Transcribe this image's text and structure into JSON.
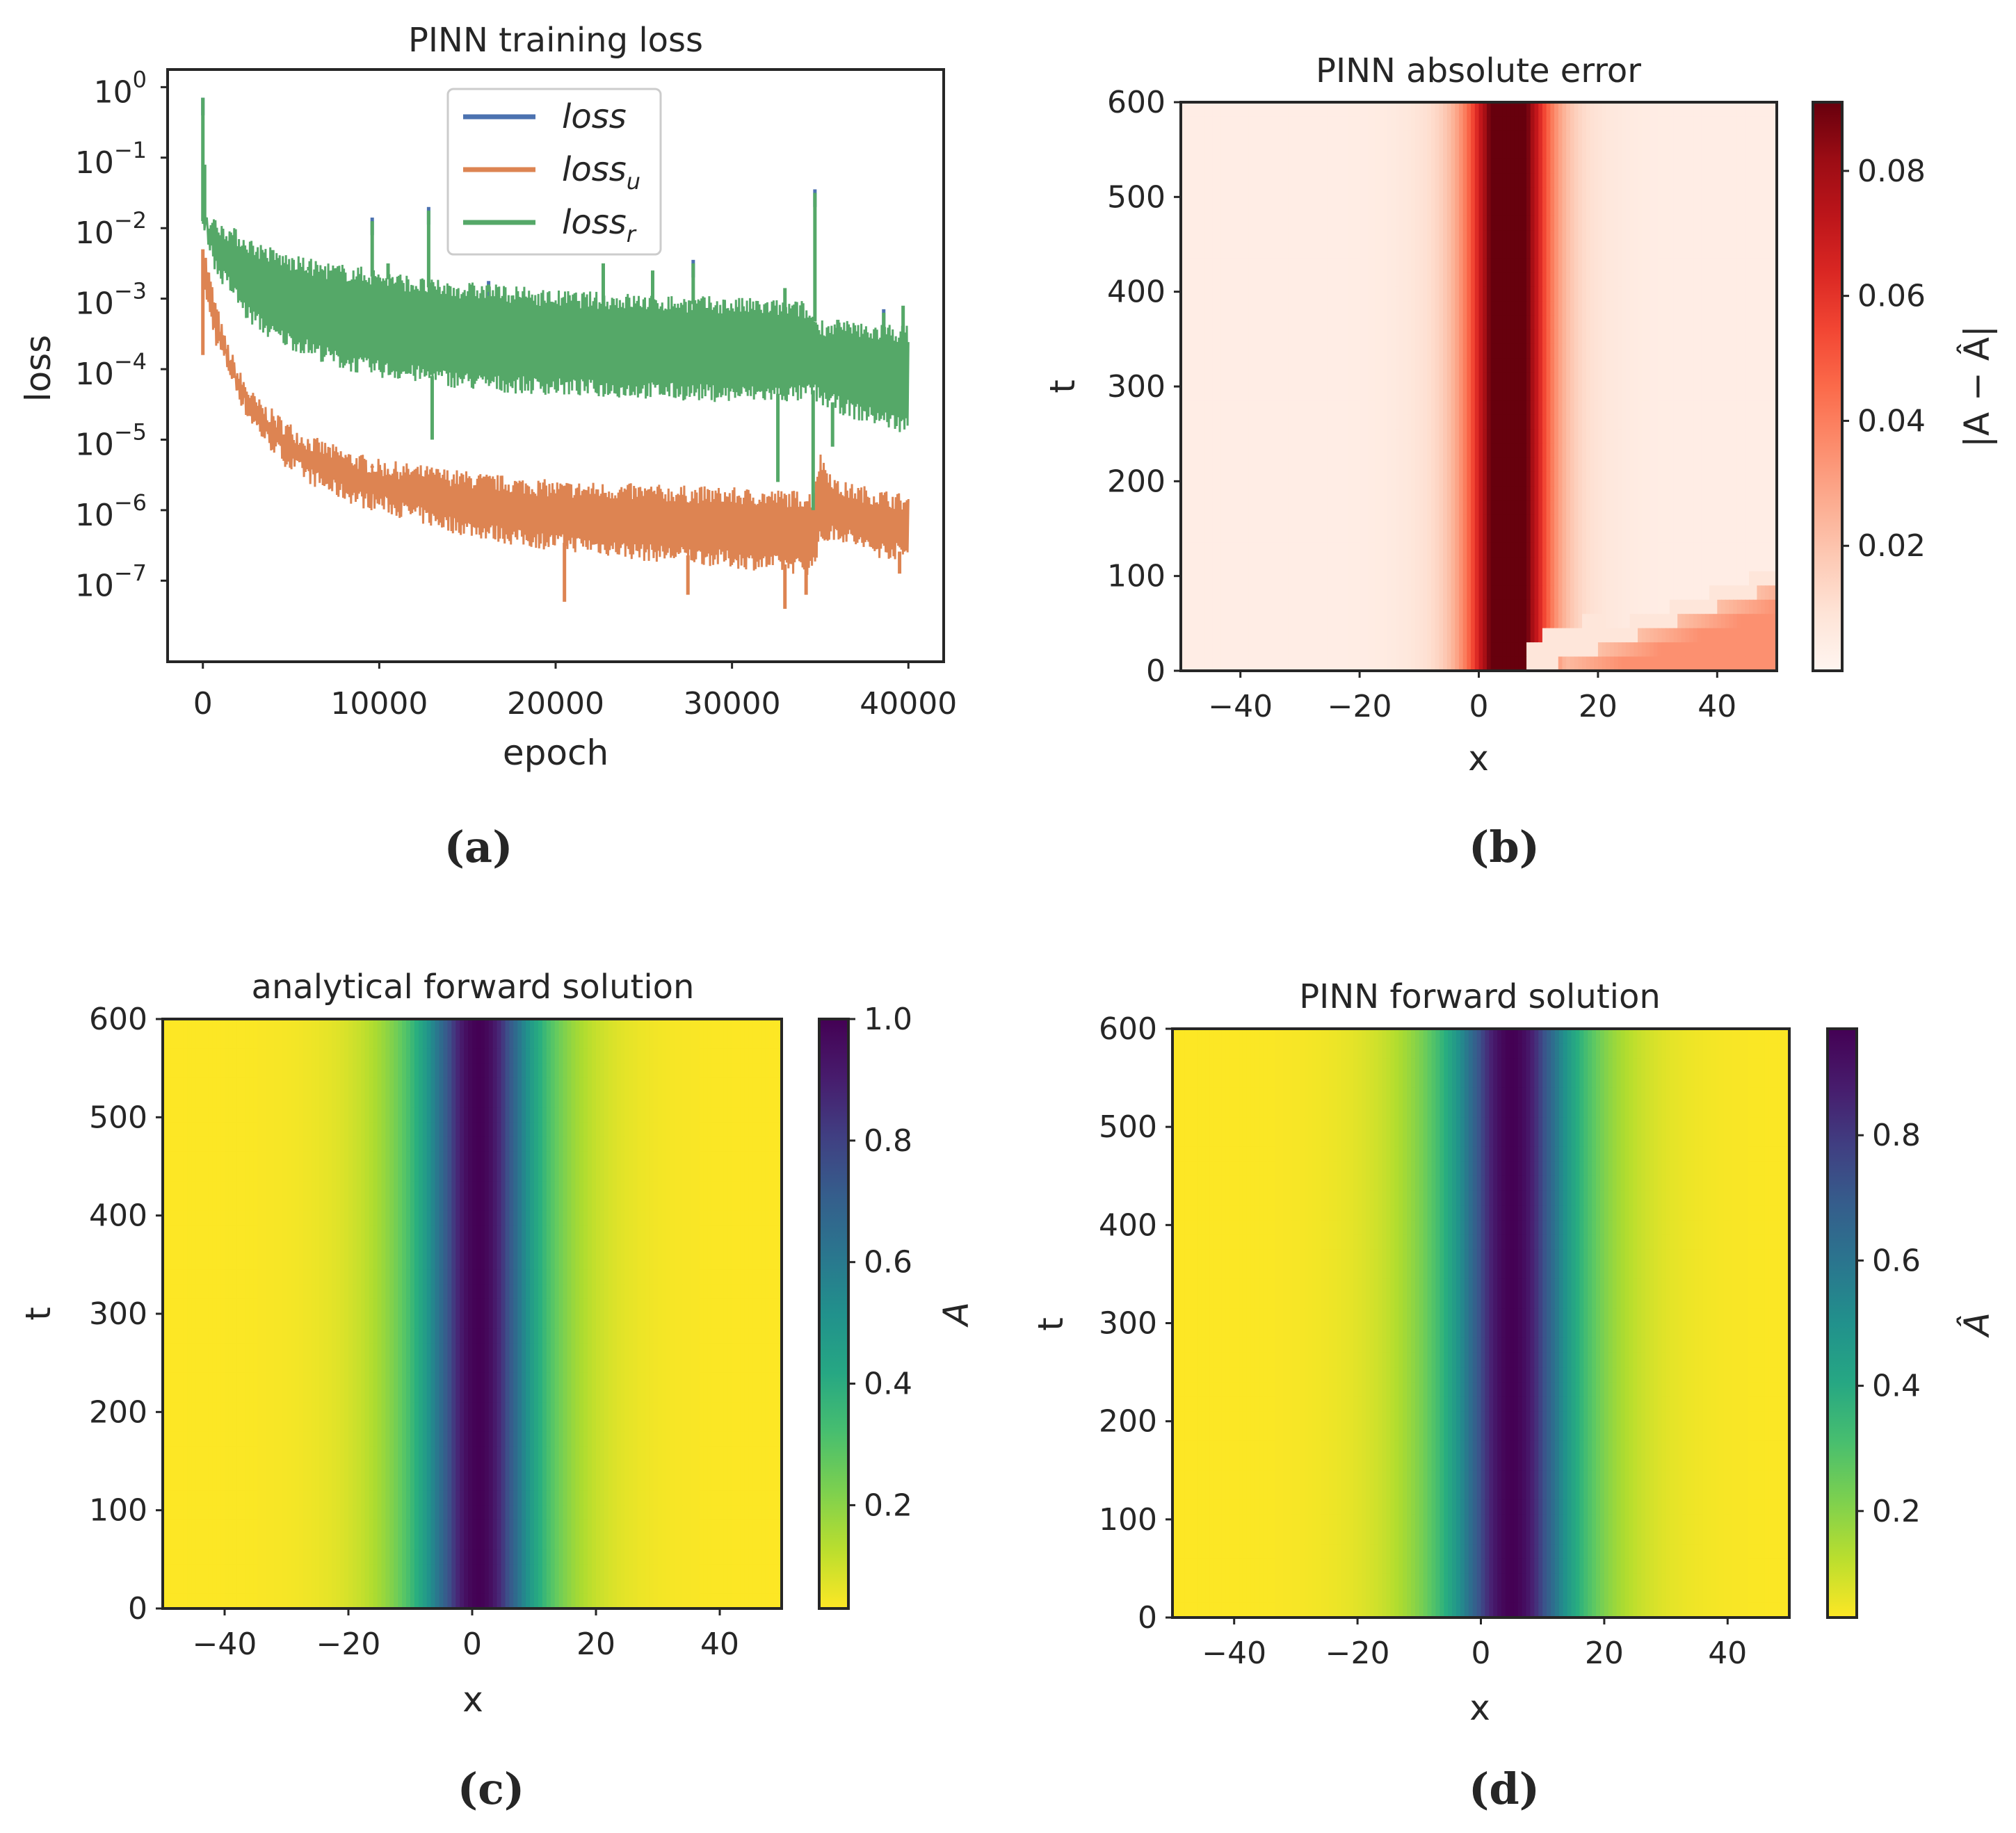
{
  "colors": {
    "loss": "#4c72b0",
    "loss_u": "#dd8452",
    "loss_r": "#55a868",
    "axes": "#262626"
  },
  "chart_data": [
    {
      "id": "a",
      "type": "line",
      "caption": "(a)",
      "title": "PINN training loss",
      "xlabel": "epoch",
      "ylabel": "loss",
      "yscale": "log",
      "xlim": [
        -2000,
        42000
      ],
      "ylim_exp": [
        -8.15,
        0.25
      ],
      "xticks": [
        0,
        10000,
        20000,
        30000,
        40000
      ],
      "xtick_labels": [
        "0",
        "10000",
        "20000",
        "30000",
        "40000"
      ],
      "yticks_exp": [
        0,
        -1,
        -2,
        -3,
        -4,
        -5,
        -6,
        -7
      ],
      "ytick_base": "10",
      "ytick_exps": [
        "0",
        "−1",
        "−2",
        "−3",
        "−4",
        "−5",
        "−6",
        "−7"
      ],
      "legend": {
        "placement": "upper-center",
        "entries": [
          "loss",
          "loss",
          "loss"
        ],
        "subscripts": [
          "",
          "u",
          "r"
        ]
      },
      "series": [
        {
          "name": "loss_r",
          "lower_log10": [
            [
              0,
              -1.6
            ],
            [
              300,
              -2.1
            ],
            [
              800,
              -2.6
            ],
            [
              1500,
              -2.8
            ],
            [
              2500,
              -3.2
            ],
            [
              4000,
              -3.5
            ],
            [
              6000,
              -3.7
            ],
            [
              8000,
              -3.9
            ],
            [
              10000,
              -4.0
            ],
            [
              13000,
              -4.1
            ],
            [
              16000,
              -4.2
            ],
            [
              20000,
              -4.25
            ],
            [
              25000,
              -4.3
            ],
            [
              30000,
              -4.35
            ],
            [
              34000,
              -4.35
            ],
            [
              34600,
              -4.3
            ],
            [
              35000,
              -4.4
            ],
            [
              37000,
              -4.6
            ],
            [
              40000,
              -4.8
            ]
          ],
          "upper_log10": [
            [
              0,
              -1.9
            ],
            [
              1000,
              -2.0
            ],
            [
              3000,
              -2.3
            ],
            [
              5000,
              -2.5
            ],
            [
              7000,
              -2.6
            ],
            [
              10000,
              -2.7
            ],
            [
              13000,
              -2.85
            ],
            [
              16000,
              -2.9
            ],
            [
              20000,
              -3.0
            ],
            [
              25000,
              -3.05
            ],
            [
              30000,
              -3.1
            ],
            [
              34000,
              -3.15
            ],
            [
              35000,
              -3.4
            ],
            [
              37000,
              -3.45
            ],
            [
              40000,
              -3.5
            ]
          ],
          "spikes": [
            [
              0,
              -0.15
            ],
            [
              100,
              -1.1
            ],
            [
              9600,
              -1.9
            ],
            [
              12800,
              -1.75
            ],
            [
              10500,
              -2.5
            ],
            [
              6000,
              -2.6
            ],
            [
              16200,
              -2.8
            ],
            [
              22700,
              -2.5
            ],
            [
              25500,
              -2.6
            ],
            [
              27800,
              -2.5
            ],
            [
              33000,
              -2.85
            ],
            [
              34700,
              -1.5
            ],
            [
              36000,
              -3.3
            ],
            [
              38600,
              -3.2
            ],
            [
              39700,
              -3.1
            ]
          ],
          "dips": [
            [
              13000,
              -5.0
            ],
            [
              32600,
              -5.6
            ],
            [
              34600,
              -6.0
            ],
            [
              35700,
              -5.1
            ]
          ]
        },
        {
          "name": "loss_u",
          "lower_log10": [
            [
              0,
              -2.4
            ],
            [
              200,
              -3.0
            ],
            [
              800,
              -3.6
            ],
            [
              1500,
              -4.0
            ],
            [
              2500,
              -4.6
            ],
            [
              3500,
              -4.95
            ],
            [
              5000,
              -5.35
            ],
            [
              7000,
              -5.65
            ],
            [
              9000,
              -5.85
            ],
            [
              10000,
              -5.9
            ],
            [
              12000,
              -6.05
            ],
            [
              14000,
              -6.2
            ],
            [
              16000,
              -6.3
            ],
            [
              18000,
              -6.4
            ],
            [
              20000,
              -6.45
            ],
            [
              22000,
              -6.5
            ],
            [
              25000,
              -6.6
            ],
            [
              28000,
              -6.65
            ],
            [
              30000,
              -6.7
            ],
            [
              32000,
              -6.75
            ],
            [
              34500,
              -6.8
            ],
            [
              35000,
              -6.4
            ],
            [
              36000,
              -6.3
            ],
            [
              38000,
              -6.55
            ],
            [
              40000,
              -6.6
            ]
          ],
          "upper_log10": [
            [
              0,
              -2.3
            ],
            [
              200,
              -2.5
            ],
            [
              600,
              -3.0
            ],
            [
              1200,
              -3.6
            ],
            [
              2000,
              -4.1
            ],
            [
              3000,
              -4.5
            ],
            [
              4500,
              -4.8
            ],
            [
              6000,
              -5.05
            ],
            [
              8000,
              -5.25
            ],
            [
              10000,
              -5.4
            ],
            [
              13000,
              -5.5
            ],
            [
              16000,
              -5.6
            ],
            [
              20000,
              -5.7
            ],
            [
              25000,
              -5.75
            ],
            [
              30000,
              -5.8
            ],
            [
              34500,
              -5.85
            ],
            [
              35000,
              -5.3
            ],
            [
              36000,
              -5.7
            ],
            [
              40000,
              -5.9
            ]
          ],
          "spikes": [
            [
              0,
              -3.8
            ],
            [
              9600,
              -5.4
            ],
            [
              12800,
              -5.6
            ]
          ],
          "dips": [
            [
              20500,
              -7.3
            ],
            [
              27500,
              -7.2
            ],
            [
              33000,
              -7.4
            ],
            [
              34200,
              -7.2
            ],
            [
              39500,
              -6.9
            ]
          ]
        },
        {
          "name": "loss",
          "lower_log10": [],
          "upper_log10": [],
          "spikes": [
            [
              0,
              -0.15
            ],
            [
              9600,
              -1.85
            ],
            [
              12800,
              -1.7
            ],
            [
              34700,
              -1.45
            ],
            [
              27800,
              -2.45
            ],
            [
              16200,
              -2.75
            ],
            [
              38600,
              -3.15
            ]
          ],
          "dips": []
        }
      ]
    },
    {
      "id": "b",
      "type": "heatmap",
      "caption": "(b)",
      "title": "PINN absolute error",
      "xlabel": "x",
      "ylabel": "t",
      "xlim": [
        -50,
        50
      ],
      "ylim": [
        0,
        600
      ],
      "xticks": [
        -40,
        -20,
        0,
        20,
        40
      ],
      "xtick_labels": [
        "−40",
        "−20",
        "0",
        "20",
        "40"
      ],
      "yticks": [
        0,
        100,
        200,
        300,
        400,
        500,
        600
      ],
      "ytick_labels": [
        "0",
        "100",
        "200",
        "300",
        "400",
        "500",
        "600"
      ],
      "colormap": "Reds",
      "colorbar_label": "|A − Â|",
      "colorbar_range": [
        0.0,
        0.091
      ],
      "colorbar_ticks": [
        0.02,
        0.04,
        0.06,
        0.08
      ],
      "colorbar_tick_labels": [
        "0.02",
        "0.04",
        "0.06",
        "0.08"
      ],
      "field": {
        "peak_value": 0.091,
        "peak_center_x": 5,
        "peak_width": 4.5,
        "flank_value": 0.035,
        "flank_width": 9,
        "far_value": 0.004,
        "wedge": {
          "slope_x_per_t": 0.23,
          "origin_x": 2,
          "value": 0.035
        }
      }
    },
    {
      "id": "c",
      "type": "heatmap",
      "caption": "(c)",
      "title": "analytical forward solution",
      "xlabel": "x",
      "ylabel": "t",
      "xlim": [
        -50,
        50
      ],
      "ylim": [
        0,
        600
      ],
      "xticks": [
        -40,
        -20,
        0,
        20,
        40
      ],
      "xtick_labels": [
        "−40",
        "−20",
        "0",
        "20",
        "40"
      ],
      "yticks": [
        0,
        100,
        200,
        300,
        400,
        500,
        600
      ],
      "ytick_labels": [
        "0",
        "100",
        "200",
        "300",
        "400",
        "500",
        "600"
      ],
      "colormap": "viridis_r",
      "colorbar_label": "A",
      "colorbar_range": [
        0.03,
        1.0
      ],
      "colorbar_ticks": [
        0.2,
        0.4,
        0.6,
        0.8,
        1.0
      ],
      "colorbar_tick_labels": [
        "0.2",
        "0.4",
        "0.6",
        "0.8",
        "1.0"
      ],
      "field": {
        "center_x": 1,
        "shape": "sech",
        "width": 6,
        "peak": 1.0,
        "floor": 0.03
      }
    },
    {
      "id": "d",
      "type": "heatmap",
      "caption": "(d)",
      "title": "PINN forward solution",
      "xlabel": "x",
      "ylabel": "t",
      "xlim": [
        -50,
        50
      ],
      "ylim": [
        0,
        600
      ],
      "xticks": [
        -40,
        -20,
        0,
        20,
        40
      ],
      "xtick_labels": [
        "−40",
        "−20",
        "0",
        "20",
        "40"
      ],
      "yticks": [
        0,
        100,
        200,
        300,
        400,
        500,
        600
      ],
      "ytick_labels": [
        "0",
        "100",
        "200",
        "300",
        "400",
        "500",
        "600"
      ],
      "colormap": "viridis_r",
      "colorbar_label": "Â",
      "colorbar_range": [
        0.03,
        0.97
      ],
      "colorbar_ticks": [
        0.2,
        0.4,
        0.6,
        0.8
      ],
      "colorbar_tick_labels": [
        "0.2",
        "0.4",
        "0.6",
        "0.8"
      ],
      "field": {
        "center_x": 5,
        "shape": "sech",
        "width": 6.5,
        "peak": 0.97,
        "floor": 0.03
      }
    }
  ]
}
